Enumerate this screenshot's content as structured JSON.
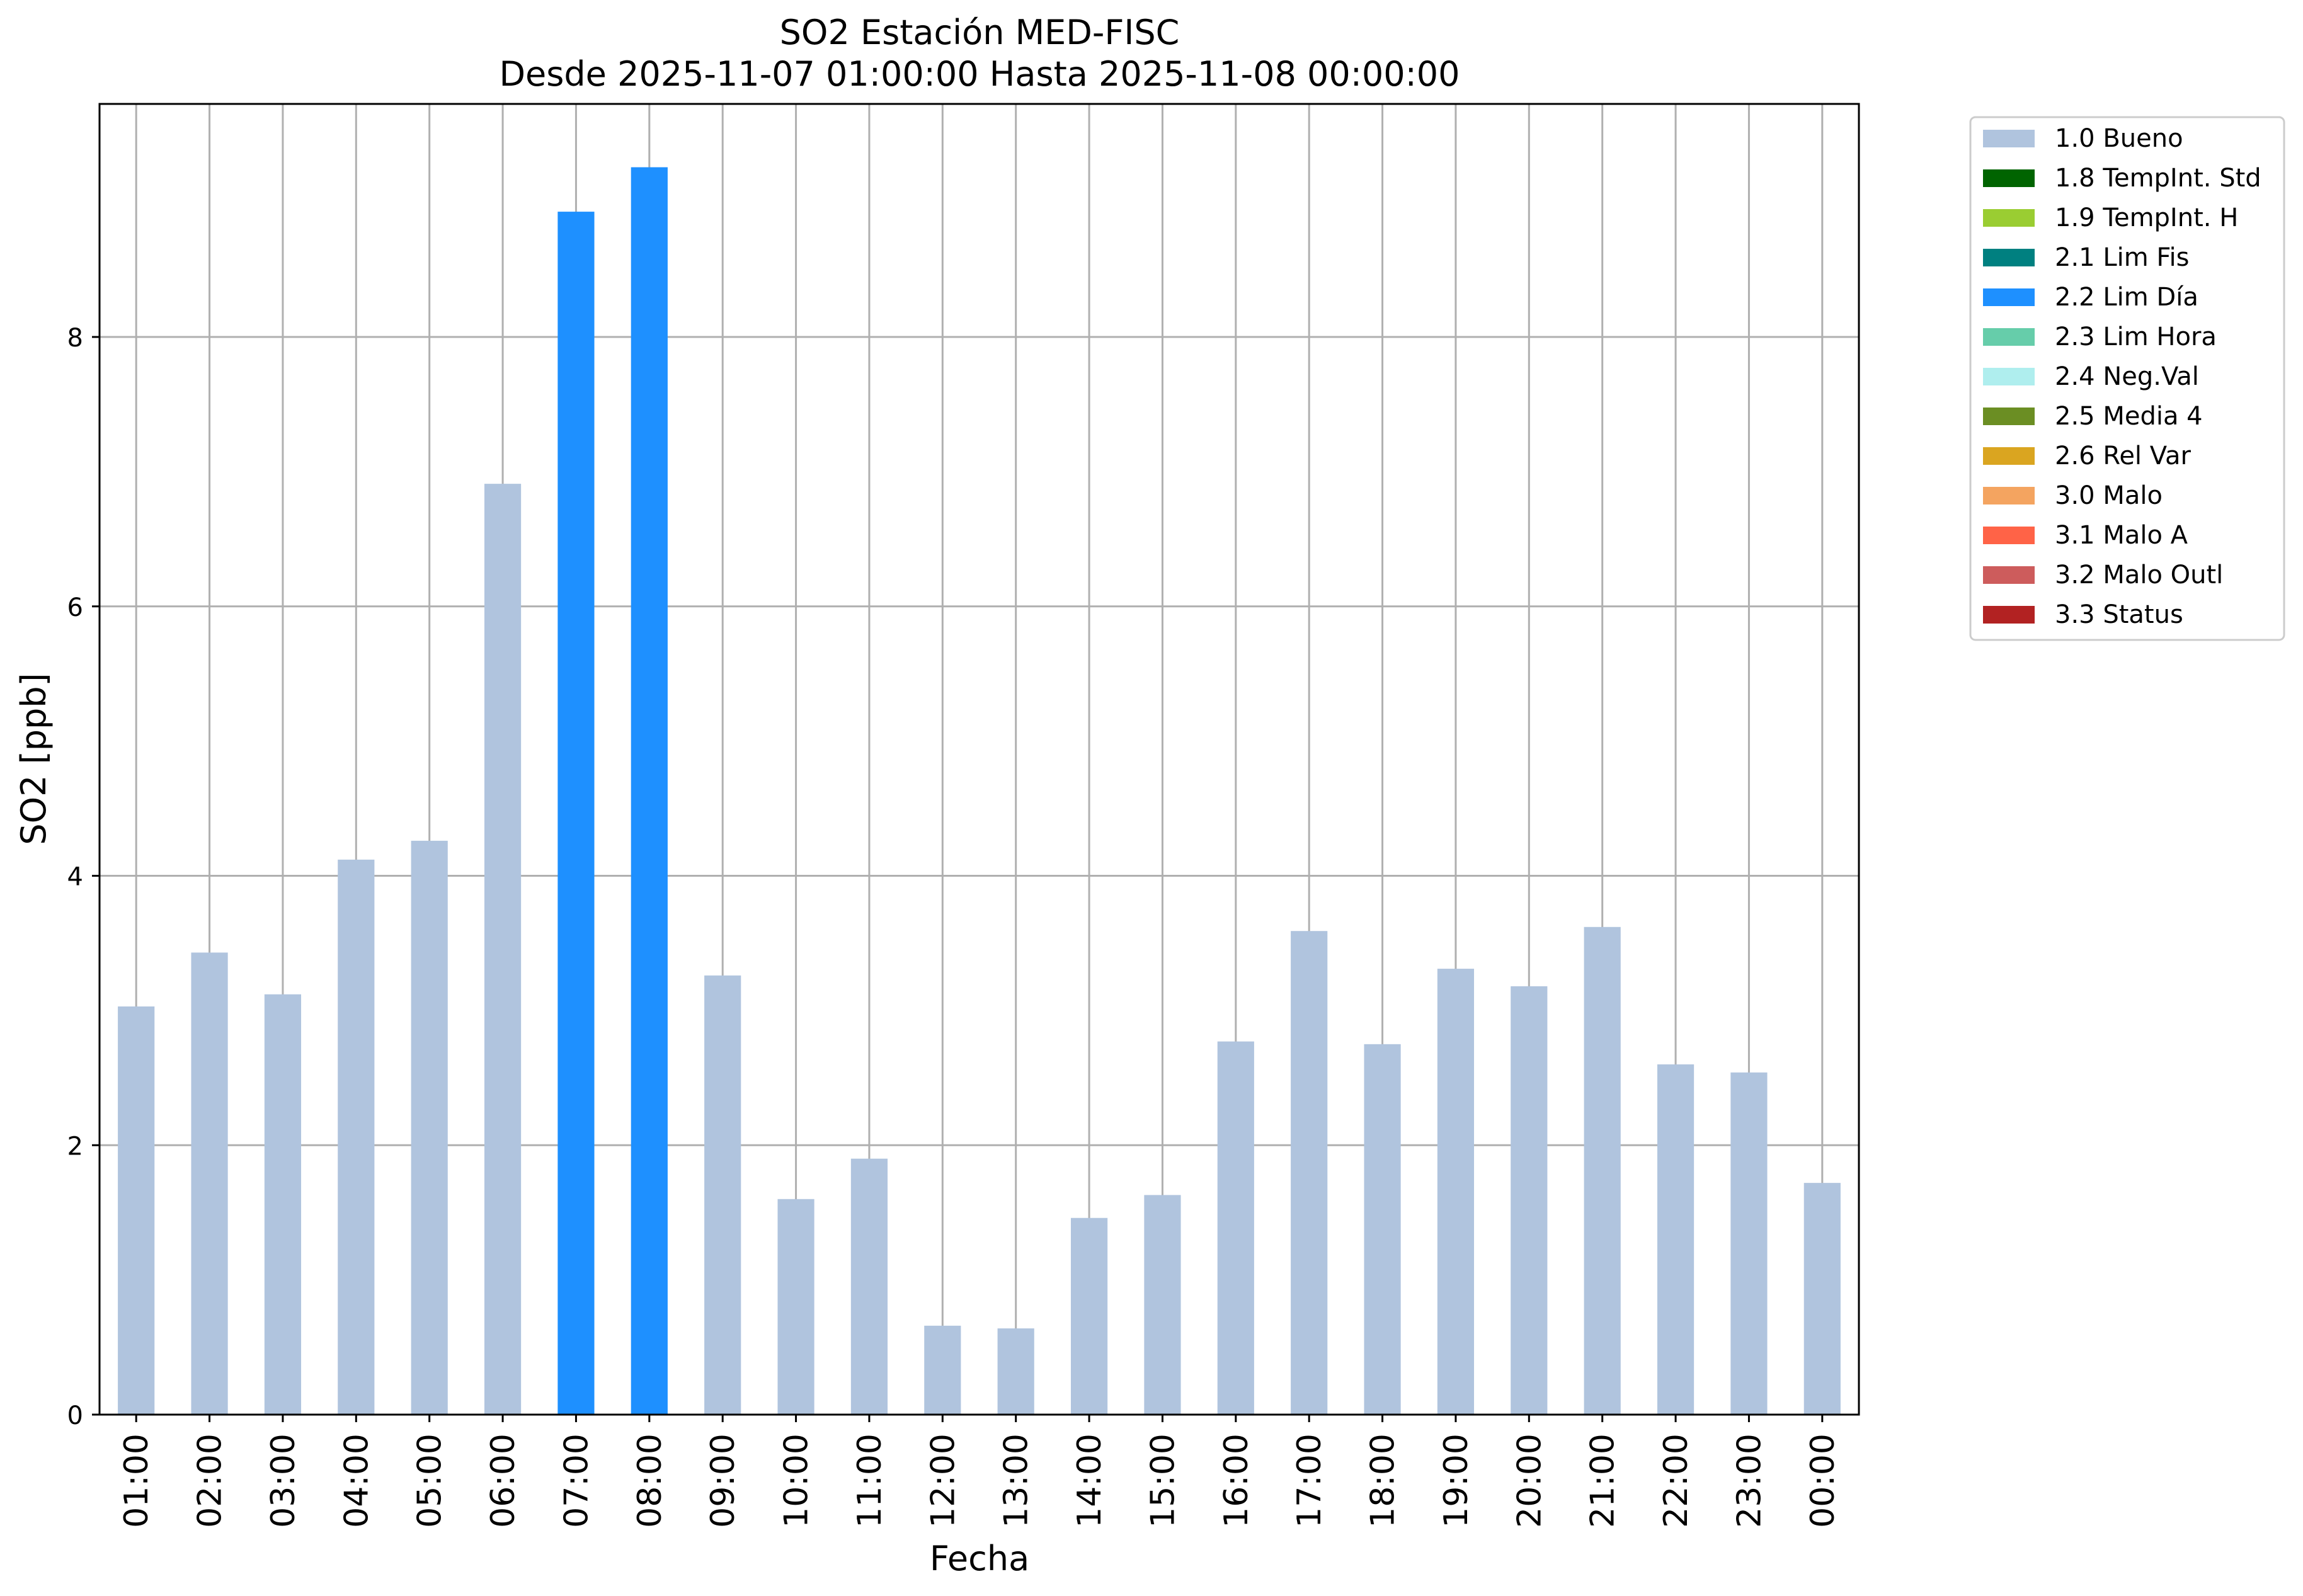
{
  "chart_data": {
    "type": "bar",
    "title": "SO2 Estación MED-FISC",
    "subtitle": "Desde 2025-11-07 01:00:00 Hasta 2025-11-08 00:00:00",
    "xlabel": "Fecha",
    "ylabel": "SO2 [ppb]",
    "ylim": [
      0,
      9.73
    ],
    "yticks": [
      0,
      2,
      4,
      6,
      8
    ],
    "grid": true,
    "legend_position": "outside-top-right",
    "categories": [
      "01:00",
      "02:00",
      "03:00",
      "04:00",
      "05:00",
      "06:00",
      "07:00",
      "08:00",
      "09:00",
      "10:00",
      "11:00",
      "12:00",
      "13:00",
      "14:00",
      "15:00",
      "16:00",
      "17:00",
      "18:00",
      "19:00",
      "20:00",
      "21:00",
      "22:00",
      "23:00",
      "00:00"
    ],
    "values": [
      3.03,
      3.43,
      3.12,
      4.12,
      4.26,
      6.91,
      8.93,
      9.26,
      3.26,
      1.6,
      1.9,
      0.66,
      0.64,
      1.46,
      1.63,
      2.77,
      3.59,
      2.75,
      3.31,
      3.18,
      3.62,
      2.6,
      2.54,
      1.72
    ],
    "flags": [
      "1.0 Bueno",
      "1.0 Bueno",
      "1.0 Bueno",
      "1.0 Bueno",
      "1.0 Bueno",
      "1.0 Bueno",
      "2.2 Lim Día",
      "2.2 Lim Día",
      "1.0 Bueno",
      "1.0 Bueno",
      "1.0 Bueno",
      "1.0 Bueno",
      "1.0 Bueno",
      "1.0 Bueno",
      "1.0 Bueno",
      "1.0 Bueno",
      "1.0 Bueno",
      "1.0 Bueno",
      "1.0 Bueno",
      "1.0 Bueno",
      "1.0 Bueno",
      "1.0 Bueno",
      "1.0 Bueno",
      "1.0 Bueno"
    ],
    "legend": [
      {
        "label": "1.0 Bueno",
        "color": "#b0c4de"
      },
      {
        "label": "1.8 TempInt. Std",
        "color": "#006400"
      },
      {
        "label": "1.9 TempInt. H",
        "color": "#9acd32"
      },
      {
        "label": "2.1 Lim Fis",
        "color": "#008080"
      },
      {
        "label": "2.2 Lim Día",
        "color": "#1e90ff"
      },
      {
        "label": "2.3 Lim Hora",
        "color": "#66cdaa"
      },
      {
        "label": "2.4 Neg.Val",
        "color": "#afeeee"
      },
      {
        "label": "2.5 Media 4",
        "color": "#6b8e23"
      },
      {
        "label": "2.6 Rel Var",
        "color": "#daa520"
      },
      {
        "label": "3.0 Malo",
        "color": "#f4a460"
      },
      {
        "label": "3.1 Malo A",
        "color": "#ff6347"
      },
      {
        "label": "3.2 Malo Outl",
        "color": "#cd5c5c"
      },
      {
        "label": "3.3 Status",
        "color": "#b22222"
      }
    ]
  }
}
